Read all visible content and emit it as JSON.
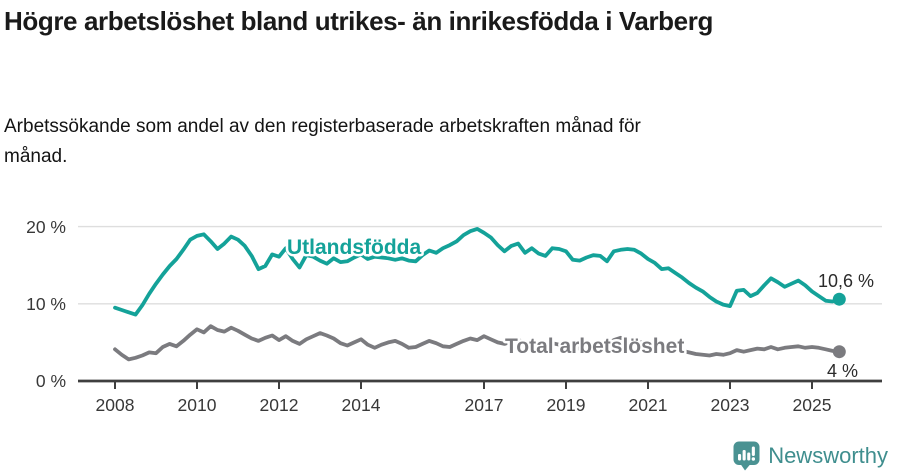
{
  "header": {
    "title": "Högre arbetslöshet bland utrikes- än inrikesfödda i Varberg",
    "subtitle": "Arbetssökande som andel av den registerbaserade arbetskraften månad för månad."
  },
  "chart_data": {
    "type": "line",
    "title": "Högre arbetslöshet bland utrikes- än inrikesfödda i Varberg",
    "subtitle": "Arbetssökande som andel av den registerbaserade arbetskraften månad för månad.",
    "grid": "horizontal-light",
    "legend_position": "inline-labels-on-lines",
    "ylim": [
      0,
      21.5
    ],
    "xlim": [
      2007.1,
      2026.7
    ],
    "axis": {
      "y_ticks": [
        0,
        10,
        20
      ],
      "y_tick_labels": [
        "0 %",
        "10 %",
        "20 %"
      ],
      "x_ticks": [
        2008,
        2010,
        2012,
        2014,
        2017,
        2019,
        2021,
        2023,
        2025
      ],
      "x_tick_labels": [
        "2008",
        "2010",
        "2012",
        "2014",
        "2017",
        "2019",
        "2021",
        "2023",
        "2025"
      ]
    },
    "x_start_year": 2008.0,
    "x_step_years": 0.16667,
    "series": [
      {
        "name": "Utlandsfödda",
        "color": "#14a299",
        "end_label": "10,6 %",
        "end_value": 10.6,
        "values": [
          9.5,
          9.2,
          8.9,
          8.6,
          9.8,
          11.3,
          12.6,
          13.8,
          14.9,
          15.8,
          17.0,
          18.3,
          18.8,
          19.0,
          18.1,
          17.1,
          17.8,
          18.7,
          18.3,
          17.5,
          16.2,
          14.5,
          14.9,
          16.4,
          16.1,
          17.2,
          15.8,
          14.7,
          16.3,
          16.1,
          15.6,
          15.2,
          15.9,
          15.4,
          15.5,
          16.0,
          16.4,
          15.8,
          16.1,
          16.0,
          15.9,
          15.7,
          15.9,
          15.6,
          15.5,
          16.3,
          16.9,
          16.6,
          17.2,
          17.6,
          18.1,
          18.9,
          19.4,
          19.7,
          19.2,
          18.6,
          17.6,
          16.8,
          17.5,
          17.8,
          16.6,
          17.2,
          16.5,
          16.2,
          17.2,
          17.1,
          16.8,
          15.7,
          15.6,
          16.0,
          16.3,
          16.2,
          15.5,
          16.8,
          17.0,
          17.1,
          17.0,
          16.5,
          15.8,
          15.3,
          14.5,
          14.6,
          14.0,
          13.4,
          12.7,
          12.1,
          11.6,
          10.9,
          10.3,
          9.9,
          9.7,
          11.7,
          11.8,
          11.0,
          11.4,
          12.4,
          13.3,
          12.8,
          12.2,
          12.6,
          13.0,
          12.4,
          11.6,
          11.0,
          10.4,
          10.3,
          10.6
        ]
      },
      {
        "name": "Total arbetslöshet",
        "color": "#7b7b7f",
        "end_label": "4 %",
        "end_value": 4,
        "values": [
          4.1,
          3.4,
          2.8,
          3.0,
          3.3,
          3.7,
          3.6,
          4.4,
          4.8,
          4.5,
          5.2,
          6.0,
          6.7,
          6.3,
          7.1,
          6.6,
          6.4,
          6.9,
          6.5,
          6.0,
          5.5,
          5.2,
          5.6,
          5.9,
          5.3,
          5.8,
          5.2,
          4.8,
          5.4,
          5.8,
          6.2,
          5.9,
          5.5,
          4.9,
          4.6,
          5.0,
          5.4,
          4.7,
          4.3,
          4.7,
          5.0,
          5.2,
          4.8,
          4.3,
          4.4,
          4.8,
          5.2,
          4.9,
          4.5,
          4.4,
          4.8,
          5.2,
          5.5,
          5.3,
          5.8,
          5.4,
          5.0,
          4.8,
          5.1,
          5.3,
          5.0,
          4.7,
          4.5,
          4.7,
          4.9,
          4.7,
          4.5,
          4.3,
          4.2,
          4.4,
          4.6,
          4.7,
          4.8,
          5.3,
          5.6,
          5.4,
          5.2,
          5.0,
          4.8,
          4.6,
          4.4,
          4.3,
          4.1,
          3.9,
          3.7,
          3.5,
          3.4,
          3.3,
          3.5,
          3.4,
          3.6,
          4.0,
          3.8,
          4.0,
          4.2,
          4.1,
          4.4,
          4.1,
          4.3,
          4.4,
          4.5,
          4.3,
          4.4,
          4.3,
          4.1,
          3.9,
          3.8
        ]
      }
    ]
  },
  "footer": {
    "brand": "Newsworthy",
    "brand_color": "#3f8e8e",
    "logo_icon": "newsworthy-barchart-exclamation-bubble",
    "logo_color": "#4a9292"
  }
}
